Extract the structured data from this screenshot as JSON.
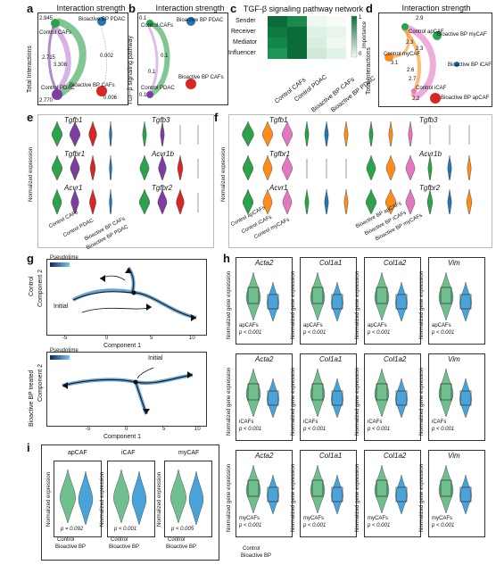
{
  "colors": {
    "control": "#2ca24a",
    "pdac": "#7b3fa0",
    "bp_caf": "#d62728",
    "bp_pdac": "#1f77b4",
    "mycaf": "#ff8c1a",
    "apcaf": "#2ca24a",
    "icaf": "#e377c2",
    "box_green": "#6fbf8f",
    "box_blue": "#4aa3d8"
  },
  "panels": {
    "a": {
      "letter": "a",
      "title": "Interaction strength",
      "ylabel": "Total Interactions",
      "nodes": [
        "Control CAFs",
        "Bioactive BP PDAC",
        "Control PDAC",
        "Bioactive BP CAFs"
      ],
      "edge_labels": [
        "2.945",
        "2.715",
        "3.308",
        "0.002",
        "2.770",
        "0.006"
      ]
    },
    "b": {
      "letter": "b",
      "title": "Interaction strength",
      "ylabel": "TGF-β signaling pathway",
      "nodes": [
        "Control CAFs",
        "Bioactive BP PDAC",
        "Control PDAC",
        "Bioactive BP CAFs"
      ],
      "edge_labels": [
        "0.1",
        "0.1",
        "0.1",
        "0.1"
      ]
    },
    "c": {
      "letter": "c",
      "title": "TGF-β signaling pathway network",
      "rows": [
        "Sender",
        "Receiver",
        "Mediator",
        "Influencer"
      ],
      "cols": [
        "Control CAFs",
        "Control PDAC",
        "Bioactive BP CAFs",
        "Bioactive BP PDAC"
      ],
      "legend_label": "Importance",
      "legend_max": "1",
      "legend_min": "0"
    },
    "d": {
      "letter": "d",
      "title": "Interaction strength",
      "ylabel": "Total Interactions",
      "nodes": [
        "Control apCAF",
        "Bioactive BP myCAF",
        "Control myCAF",
        "Bioactive BP iCAF",
        "Control iCAF",
        "Bioactive BP apCAF"
      ],
      "edge_labels": [
        "2.9",
        "2.3",
        "2.3",
        "3.1",
        "2.6",
        "2.7",
        "2.2"
      ]
    },
    "e": {
      "letter": "e",
      "ylabel": "Normalized expression",
      "genes_left": [
        "Tgfb1",
        "Tgfbr1",
        "Acvr1"
      ],
      "genes_right": [
        "Tgfb3",
        "Acvr1b",
        "Tgfbr2"
      ],
      "xticks": [
        "Control CAFs",
        "Control PDAC",
        "Bioactive BP CAFs",
        "Bioactive BP PDAC"
      ]
    },
    "f": {
      "letter": "f",
      "ylabel": "Normalized expression",
      "genes_left": [
        "Tgfb1",
        "Tgfbr1",
        "Acvr1"
      ],
      "genes_right": [
        "Tgfb3",
        "Acvr1b",
        "Tgfbr2"
      ],
      "xticks": [
        "Control apCAFs",
        "Control iCAFs",
        "Control myCAFs",
        "Bioactive BP apCAFs",
        "Bioactive BP iCAFs",
        "Bioactive BP myCAFs"
      ]
    },
    "g": {
      "letter": "g",
      "top_label": "Control",
      "bottom_label": "Bioactive BP treated",
      "legend": "Pseudotime",
      "ylabel": "Component 2",
      "xlabel": "Component 1",
      "initial": "Initial",
      "xticks_top": [
        "-5",
        "0",
        "5",
        "10"
      ],
      "xticks_bottom": [
        "-5",
        "0",
        "5",
        "10"
      ]
    },
    "h": {
      "letter": "h",
      "ylabel": "Normalized gene expression",
      "genes": [
        "Acta2",
        "Col1a1",
        "Col1a2",
        "Vim"
      ],
      "rows": [
        {
          "group": "apCAFs",
          "p": [
            "p < 0.001",
            "p < 0.001",
            "p < 0.001",
            "p < 0.001"
          ]
        },
        {
          "group": "iCAFs",
          "p": [
            "p < 0.001",
            "p < 0.001",
            "p < 0.001",
            "p < 0.001"
          ]
        },
        {
          "group": "myCAFs",
          "p": [
            "p < 0.001",
            "p < 0.001",
            "p < 0.001",
            "p < 0.001"
          ]
        }
      ],
      "xticks": [
        "Control",
        "Bioactive BP"
      ]
    },
    "i": {
      "letter": "i",
      "ylabel": "Normalized expression",
      "plots": [
        {
          "title": "apCAF",
          "p": "p = 0.092"
        },
        {
          "title": "iCAF",
          "p": "p < 0.001"
        },
        {
          "title": "myCAF",
          "p": "p < 0.005"
        }
      ],
      "xticks": [
        "Control",
        "Bioactive BP"
      ]
    }
  }
}
